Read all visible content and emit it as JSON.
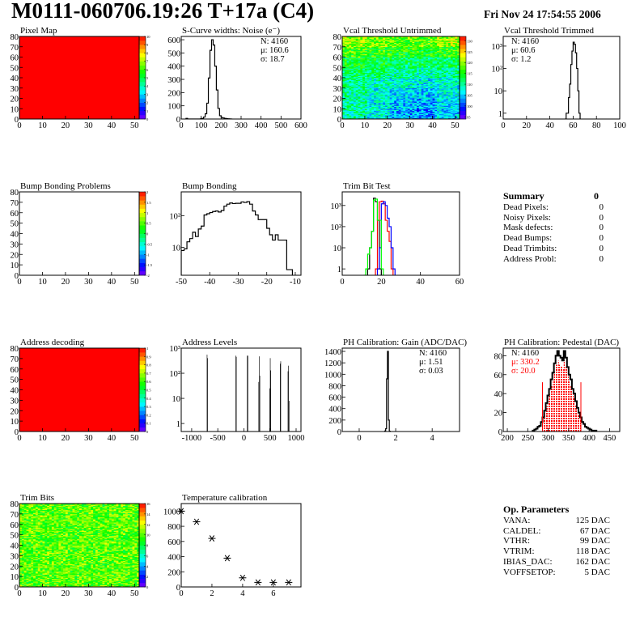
{
  "header": {
    "title": "M0111-060706.19:26 T+17a (C4)",
    "date": "Fri Nov 24 17:54:55 2006"
  },
  "summary": {
    "title": "Summary",
    "total": "0",
    "items": [
      {
        "label": "Dead Pixels:",
        "value": "0"
      },
      {
        "label": "Noisy Pixels:",
        "value": "0"
      },
      {
        "label": "Mask defects:",
        "value": "0"
      },
      {
        "label": "Dead Bumps:",
        "value": "0"
      },
      {
        "label": "Dead Trimbits:",
        "value": "0"
      },
      {
        "label": "Address Probl:",
        "value": "0"
      }
    ]
  },
  "op_parameters": {
    "title": "Op. Parameters",
    "items": [
      {
        "label": "VANA:",
        "value": "125 DAC"
      },
      {
        "label": "CALDEL:",
        "value": "67 DAC"
      },
      {
        "label": "VTHR:",
        "value": "99 DAC"
      },
      {
        "label": "VTRIM:",
        "value": "118 DAC"
      },
      {
        "label": "IBIAS_DAC:",
        "value": "162 DAC"
      },
      {
        "label": "VOFFSETOP:",
        "value": "5 DAC"
      }
    ]
  },
  "chart_data": [
    {
      "id": "pixel-map",
      "type": "heatmap",
      "title": "Pixel Map",
      "xlim": [
        0,
        52
      ],
      "ylim": [
        0,
        80
      ],
      "zlim": [
        0,
        10
      ],
      "xticks": [
        0,
        10,
        20,
        30,
        40,
        50
      ],
      "yticks": [
        0,
        10,
        20,
        30,
        40,
        50,
        60,
        70,
        80
      ],
      "zticks": [
        "0",
        "1",
        "2",
        "3",
        "4",
        "5",
        "6",
        "7",
        "8",
        "9",
        "10"
      ],
      "fill_value": 10
    },
    {
      "id": "s-curve-widths",
      "type": "histogram",
      "title": "S-Curve widths: Noise (e⁻)",
      "xlim": [
        0,
        600
      ],
      "ylim": [
        0,
        625
      ],
      "log": false,
      "xticks": [
        0,
        100,
        200,
        300,
        400,
        500,
        600
      ],
      "yticks": [
        0,
        100,
        200,
        300,
        400,
        500,
        600
      ],
      "stats": [
        {
          "label": "N",
          "value": "4160"
        },
        {
          "label": "μ",
          "value": "160.6"
        },
        {
          "label": "σ",
          "value": "18.7"
        }
      ],
      "stats_pos": "right",
      "series": [
        {
          "color": "#000000",
          "bin_start": 24,
          "bin_width": 8,
          "counts": [
            5,
            0,
            0,
            0,
            0,
            0,
            0,
            0,
            0,
            2,
            5,
            15,
            40,
            120,
            310,
            520,
            600,
            560,
            400,
            220,
            80,
            25,
            12,
            8,
            5,
            3,
            2,
            1,
            0
          ]
        }
      ]
    },
    {
      "id": "vcal-untrimmed",
      "type": "heatmap",
      "title": "Vcal Threshold Untrimmed",
      "xlim": [
        0,
        52
      ],
      "ylim": [
        0,
        80
      ],
      "zlim": [
        94,
        132
      ],
      "xticks": [
        0,
        10,
        20,
        30,
        40,
        50
      ],
      "yticks": [
        0,
        10,
        20,
        30,
        40,
        50,
        60,
        70,
        80
      ],
      "zticks": [
        "95",
        "100",
        "105",
        "110",
        "115",
        "120",
        "125",
        "130"
      ],
      "coarse_grid": [
        [
          120,
          119,
          118,
          118,
          120
        ],
        [
          117,
          116,
          115,
          115,
          116
        ],
        [
          114,
          113,
          112,
          112,
          112
        ],
        [
          112,
          111,
          110,
          109,
          110
        ],
        [
          111,
          109,
          108,
          107,
          108
        ],
        [
          110,
          108,
          106,
          105,
          107
        ],
        [
          110,
          107,
          105,
          104,
          106
        ],
        [
          110,
          107,
          104,
          103,
          105
        ]
      ]
    },
    {
      "id": "vcal-trimmed",
      "type": "histogram",
      "title": "Vcal Threshold Trimmed",
      "xlim": [
        0,
        100
      ],
      "ylim": [
        0.55,
        2700
      ],
      "log": true,
      "xticks": [
        0,
        20,
        40,
        60,
        80,
        100
      ],
      "yticks": [
        1,
        10,
        100,
        1000
      ],
      "stats": [
        {
          "label": "N",
          "value": "4160"
        },
        {
          "label": "μ",
          "value": "60.6"
        },
        {
          "label": "σ",
          "value": " 1.2"
        }
      ],
      "stats_pos": "left",
      "series": [
        {
          "color": "#000000",
          "bin_start": 53,
          "bin_width": 1,
          "counts": [
            0,
            1,
            1,
            5,
            20,
            150,
            600,
            1500,
            1200,
            500,
            100,
            10,
            1
          ]
        }
      ]
    },
    {
      "id": "bump-bonding-problems",
      "type": "heatmap",
      "title": "Bump Bonding Problems",
      "xlim": [
        0,
        52
      ],
      "ylim": [
        0,
        80
      ],
      "zlim": [
        -2,
        2
      ],
      "xticks": [
        0,
        10,
        20,
        30,
        40,
        50
      ],
      "yticks": [
        0,
        10,
        20,
        30,
        40,
        50,
        60,
        70,
        80
      ],
      "zticks": [
        "-2",
        "-1.5",
        "-1",
        "-0.5",
        "0",
        "0.5",
        "1",
        "1.5",
        "2"
      ],
      "fill_value": null
    },
    {
      "id": "bump-bonding",
      "type": "histogram",
      "title": "Bump Bonding",
      "xlim": [
        -50,
        -8
      ],
      "ylim": [
        1.33,
        560
      ],
      "log": true,
      "xticks": [
        -50,
        -40,
        -30,
        -20,
        -10
      ],
      "yticks": [
        10,
        100
      ],
      "series": [
        {
          "color": "#000000",
          "bin_start": -50,
          "bin_width": 1,
          "counts": [
            8,
            9,
            15,
            19,
            30,
            22,
            38,
            47,
            105,
            115,
            125,
            135,
            140,
            130,
            145,
            200,
            230,
            250,
            240,
            245,
            245,
            270,
            260,
            275,
            230,
            140,
            105,
            75,
            75,
            75,
            40,
            25,
            17,
            25,
            17,
            17,
            17,
            2,
            2
          ]
        }
      ]
    },
    {
      "id": "trim-bit-test",
      "type": "histogram",
      "title": "Trim Bit Test",
      "xlim": [
        0,
        60
      ],
      "ylim": [
        0.5,
        4400
      ],
      "log": true,
      "xticks": [
        0,
        20,
        40,
        60
      ],
      "yticks": [
        1,
        10,
        100,
        1000
      ],
      "series": [
        {
          "color": "#000000",
          "bin_start": 13,
          "bin_width": 1,
          "counts": [
            1,
            10,
            60,
            2200,
            1500,
            200,
            1
          ]
        },
        {
          "color": "#ff0000",
          "bin_start": 17,
          "bin_width": 1,
          "counts": [
            1,
            200,
            1500,
            1600,
            1200,
            200,
            60,
            20,
            1
          ]
        },
        {
          "color": "#0000ff",
          "bin_start": 18,
          "bin_width": 1,
          "counts": [
            1,
            10,
            1200,
            1500,
            1000,
            250,
            100,
            10,
            1
          ]
        },
        {
          "color": "#00ff00",
          "bin_start": 11,
          "bin_width": 1,
          "counts": [
            0,
            1,
            5,
            10,
            60,
            1800,
            2000,
            200,
            200,
            1
          ]
        }
      ]
    },
    {
      "id": "address-decoding",
      "type": "heatmap",
      "title": "Address decoding",
      "xlim": [
        0,
        52
      ],
      "ylim": [
        0,
        80
      ],
      "zlim": [
        0,
        1
      ],
      "xticks": [
        0,
        10,
        20,
        30,
        40,
        50
      ],
      "yticks": [
        0,
        10,
        20,
        30,
        40,
        50,
        60,
        70,
        80
      ],
      "zticks": [
        "0",
        "0.1",
        "0.2",
        "0.3",
        "0.4",
        "0.5",
        "0.6",
        "0.7",
        "0.8",
        "0.9",
        "1"
      ],
      "fill_value": 1
    },
    {
      "id": "address-levels",
      "type": "histogram",
      "title": "Address Levels",
      "xlim": [
        -1200,
        1093
      ],
      "ylim": [
        0.48,
        1000
      ],
      "log": true,
      "xticks": [
        -1000,
        -500,
        0,
        500,
        1000
      ],
      "yticks": [
        1,
        10,
        100,
        1000
      ],
      "series": [
        {
          "color": "#000000",
          "bin_width": 10,
          "bins": [
            [
              -705,
              550
            ],
            [
              -695,
              400
            ],
            [
              -155,
              500
            ],
            [
              -145,
              450
            ],
            [
              65,
              500
            ],
            [
              75,
              500
            ],
            [
              285,
              45
            ],
            [
              295,
              470
            ],
            [
              305,
              80
            ],
            [
              495,
              25
            ],
            [
              505,
              400
            ],
            [
              515,
              130
            ],
            [
              695,
              240
            ],
            [
              705,
              300
            ],
            [
              845,
              120
            ],
            [
              855,
              200
            ],
            [
              865,
              8
            ]
          ]
        }
      ]
    },
    {
      "id": "ph-gain",
      "type": "histogram",
      "title": "PH Calibration: Gain (ADC/DAC)",
      "xlim": [
        -0.93,
        5.5
      ],
      "ylim": [
        0,
        1457
      ],
      "log": false,
      "xticks": [
        0,
        2,
        4
      ],
      "yticks": [
        0,
        200,
        400,
        600,
        800,
        1000,
        1200,
        1400
      ],
      "stats": [
        {
          "label": "N",
          "value": "4160"
        },
        {
          "label": "μ",
          "value": "1.51"
        },
        {
          "label": "σ",
          "value": "0.03"
        }
      ],
      "stats_pos": "right",
      "series": [
        {
          "color": "#000000",
          "bin_start": 1.4,
          "bin_width": 0.05,
          "counts": [
            10,
            50,
            920,
            1400,
            200,
            5
          ]
        }
      ]
    },
    {
      "id": "ph-pedestal",
      "type": "histogram",
      "title": "PH Calibration: Pedestal (DAC)",
      "xlim": [
        190,
        475
      ],
      "ylim": [
        0,
        88
      ],
      "log": false,
      "xticks": [
        200,
        250,
        300,
        350,
        400,
        450
      ],
      "yticks": [
        0,
        20,
        40,
        60,
        80
      ],
      "stats": [
        {
          "label": "N",
          "value": "4160",
          "color": "#000000"
        },
        {
          "label": "μ",
          "value": "330.2",
          "color": "#ff0000"
        },
        {
          "label": "σ",
          "value": "20.0",
          "color": "#ff0000"
        }
      ],
      "stats_pos": "left",
      "fill_range": [
        286,
        380
      ],
      "fill_color": "#ff0000",
      "markers": [
        286,
        380
      ],
      "marker_height": 52,
      "series": [
        {
          "color": "#000000",
          "bin_start": 262,
          "bin_width": 4,
          "counts": [
            1,
            2,
            3,
            5,
            6,
            10,
            15,
            22,
            30,
            38,
            45,
            55,
            62,
            72,
            80,
            85,
            80,
            78,
            75,
            85,
            78,
            68,
            60,
            55,
            45,
            40,
            32,
            25,
            20,
            15,
            10,
            8,
            5,
            4,
            3,
            2,
            1,
            1,
            1
          ]
        }
      ]
    },
    {
      "id": "trim-bits",
      "type": "heatmap",
      "title": "Trim Bits",
      "xlim": [
        0,
        52
      ],
      "ylim": [
        0,
        80
      ],
      "zlim": [
        0,
        16
      ],
      "xticks": [
        0,
        10,
        20,
        30,
        40,
        50
      ],
      "yticks": [
        0,
        10,
        20,
        30,
        40,
        50,
        60,
        70,
        80
      ],
      "zticks": [
        "0",
        "2",
        "4",
        "6",
        "8",
        "10",
        "12",
        "14",
        "16"
      ],
      "coarse_grid": [
        [
          10
        ]
      ]
    },
    {
      "id": "temperature-calibration",
      "type": "scatter",
      "title": "Temperature calibration",
      "xlim": [
        0,
        7.8
      ],
      "ylim": [
        0,
        1100
      ],
      "xticks": [
        0,
        2,
        4,
        6
      ],
      "yticks": [
        0,
        200,
        400,
        600,
        800,
        1000
      ],
      "x": [
        0,
        1,
        2,
        3,
        4,
        5,
        6,
        7
      ],
      "y": [
        1000,
        860,
        640,
        380,
        120,
        60,
        60,
        60
      ]
    }
  ]
}
